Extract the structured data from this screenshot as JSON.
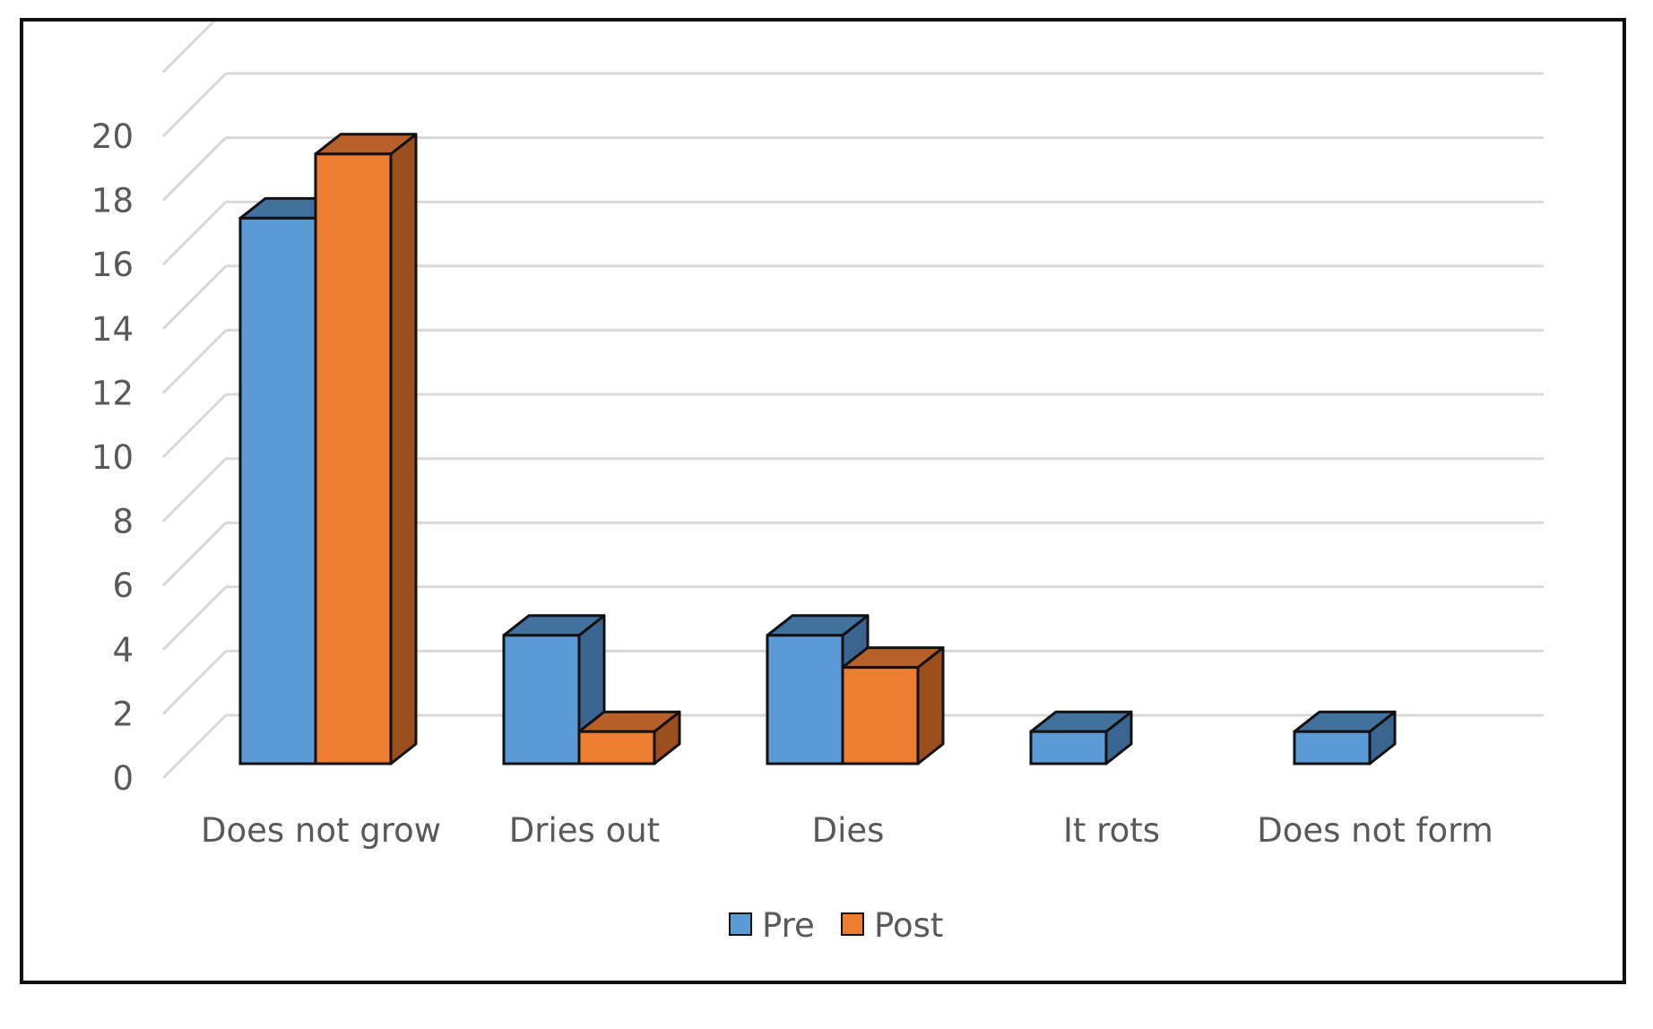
{
  "chart_data": {
    "type": "bar",
    "style": "3d-clustered-column",
    "categories": [
      "Does not grow",
      "Dries out",
      "Dies",
      "It rots",
      "Does not form"
    ],
    "series": [
      {
        "name": "Pre",
        "values": [
          17,
          4,
          4,
          1,
          1
        ],
        "color": "#5b9bd5",
        "side_color": "#3a6591",
        "top_color": "#41719c"
      },
      {
        "name": "Post",
        "values": [
          19,
          1,
          3,
          0,
          0
        ],
        "color": "#ed7d31",
        "side_color": "#9c4e1d",
        "top_color": "#b8602a"
      }
    ],
    "y_ticks": [
      "0",
      "2",
      "4",
      "6",
      "8",
      "10",
      "12",
      "14",
      "16",
      "18",
      "20"
    ],
    "ylim": [
      0,
      20
    ],
    "grid": true,
    "legend_position": "bottom",
    "title": "",
    "xlabel": "",
    "ylabel": ""
  }
}
